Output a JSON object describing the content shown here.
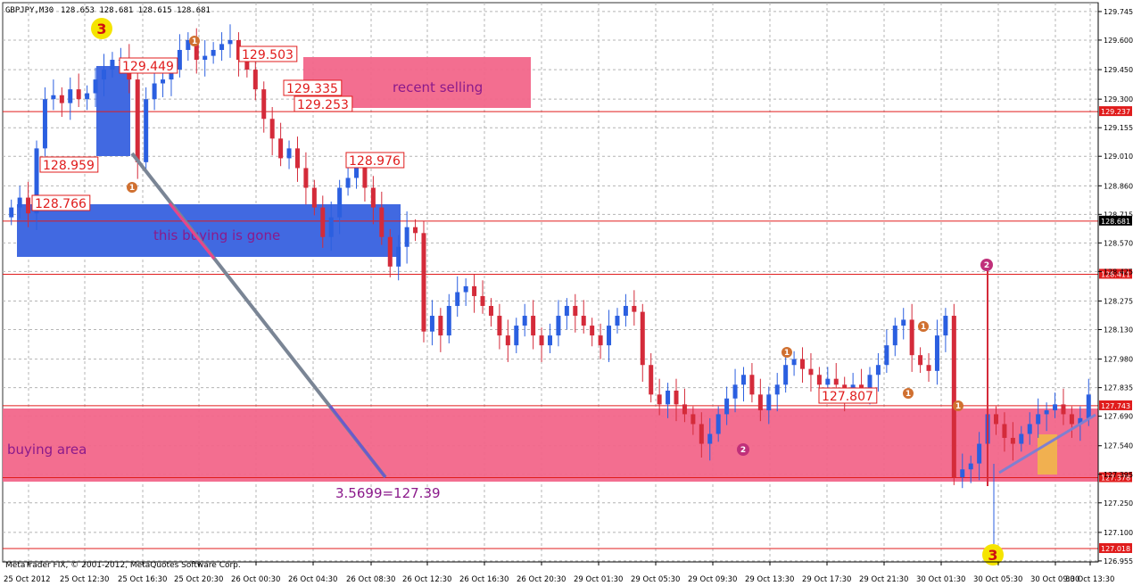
{
  "header": {
    "symbol": "GBPJPY,M30",
    "ohlc": "128.653 128.681 128.615 128.681"
  },
  "footer": {
    "copyright": "MetaTrader FIX, © 2001-2012, MetaQuotes Software Corp."
  },
  "colors": {
    "background": "#ffffff",
    "grid": "#b4b4b4",
    "bull_candle": "#2b5fe0",
    "bear_candle": "#d42b3a",
    "zone_pink": "#f2668a",
    "zone_blue": "#4169e1",
    "level_line": "#e01c1c",
    "trend_line": "#7a8595",
    "label_text": "#8b1a8b",
    "yellow_marker": "#f5e400"
  },
  "chart_data": {
    "type": "candlestick",
    "symbol": "GBPJPY",
    "timeframe": "M30",
    "ylim": [
      126.95,
      129.79
    ],
    "y_ticks": [
      "129.745",
      "129.600",
      "129.450",
      "129.300",
      "129.155",
      "129.010",
      "128.860",
      "128.715",
      "128.570",
      "128.425",
      "128.275",
      "128.130",
      "127.980",
      "127.835",
      "127.690",
      "127.540",
      "127.395",
      "127.250",
      "127.100",
      "126.955"
    ],
    "x_ticks": [
      "25 Oct 2012",
      "25 Oct 12:30",
      "25 Oct 16:30",
      "25 Oct 20:30",
      "26 Oct 00:30",
      "26 Oct 04:30",
      "26 Oct 08:30",
      "26 Oct 12:30",
      "26 Oct 16:30",
      "26 Oct 20:30",
      "29 Oct 01:30",
      "29 Oct 05:30",
      "29 Oct 09:30",
      "29 Oct 13:30",
      "29 Oct 17:30",
      "29 Oct 21:30",
      "30 Oct 01:30",
      "30 Oct 05:30",
      "30 Oct 09:30",
      "30 Oct 13:30"
    ],
    "candles_close": [
      128.75,
      128.8,
      128.72,
      129.05,
      129.3,
      129.32,
      129.28,
      129.35,
      129.3,
      129.33,
      129.4,
      129.45,
      129.5,
      129.5,
      129.4,
      128.98,
      129.3,
      129.38,
      129.4,
      129.45,
      129.55,
      129.6,
      129.5,
      129.52,
      129.55,
      129.58,
      129.6,
      129.5,
      129.45,
      129.35,
      129.2,
      129.1,
      129.0,
      129.05,
      128.95,
      128.85,
      128.75,
      128.6,
      128.7,
      128.85,
      128.9,
      128.95,
      128.85,
      128.75,
      128.6,
      128.45,
      128.55,
      128.65,
      128.62,
      128.12,
      128.2,
      128.1,
      128.25,
      128.32,
      128.35,
      128.3,
      128.25,
      128.2,
      128.1,
      128.05,
      128.15,
      128.2,
      128.1,
      128.05,
      128.1,
      128.2,
      128.25,
      128.2,
      128.15,
      128.1,
      128.05,
      128.15,
      128.2,
      128.25,
      128.22,
      127.95,
      127.8,
      127.75,
      127.82,
      127.75,
      127.7,
      127.65,
      127.55,
      127.6,
      127.7,
      127.78,
      127.85,
      127.9,
      127.8,
      127.72,
      127.8,
      127.85,
      127.95,
      127.98,
      127.93,
      127.9,
      127.85,
      127.88,
      127.85,
      127.8,
      127.85,
      127.82,
      127.9,
      127.95,
      128.05,
      128.15,
      128.18,
      128.0,
      127.95,
      127.92,
      128.1,
      128.2,
      127.38,
      127.42,
      127.45,
      127.55,
      127.7,
      127.65,
      127.58,
      127.55,
      127.6,
      127.65,
      127.7,
      127.72,
      127.75,
      127.7,
      127.65,
      127.68,
      127.8
    ],
    "levels": [
      {
        "label": "129.237",
        "value": 129.237
      },
      {
        "label": "128.681",
        "value": 128.681
      },
      {
        "label": "128.411",
        "value": 128.411
      },
      {
        "label": "127.743",
        "value": 127.743
      },
      {
        "label": "127.378",
        "value": 127.378
      },
      {
        "label": "127.018",
        "value": 127.018
      }
    ],
    "price_labels": [
      "129.449",
      "129.503",
      "129.335",
      "129.253",
      "128.959",
      "128.976",
      "128.766",
      "127.807"
    ],
    "annotations": {
      "recent_selling": "recent selling",
      "buying_gone": "this buying is gone",
      "buying_area": "buying area",
      "projection": "3.5699=127.39"
    },
    "markers": [
      {
        "text": "3",
        "kind": "yellow"
      },
      {
        "text": "3",
        "kind": "yellow"
      },
      {
        "text": "2",
        "kind": "magenta"
      },
      {
        "text": "2",
        "kind": "magenta"
      },
      {
        "text": "1",
        "kind": "orange"
      },
      {
        "text": "1",
        "kind": "orange"
      },
      {
        "text": "1",
        "kind": "orange"
      },
      {
        "text": "1",
        "kind": "orange"
      },
      {
        "text": "1",
        "kind": "orange"
      },
      {
        "text": "1",
        "kind": "orange"
      }
    ],
    "grid": true
  }
}
